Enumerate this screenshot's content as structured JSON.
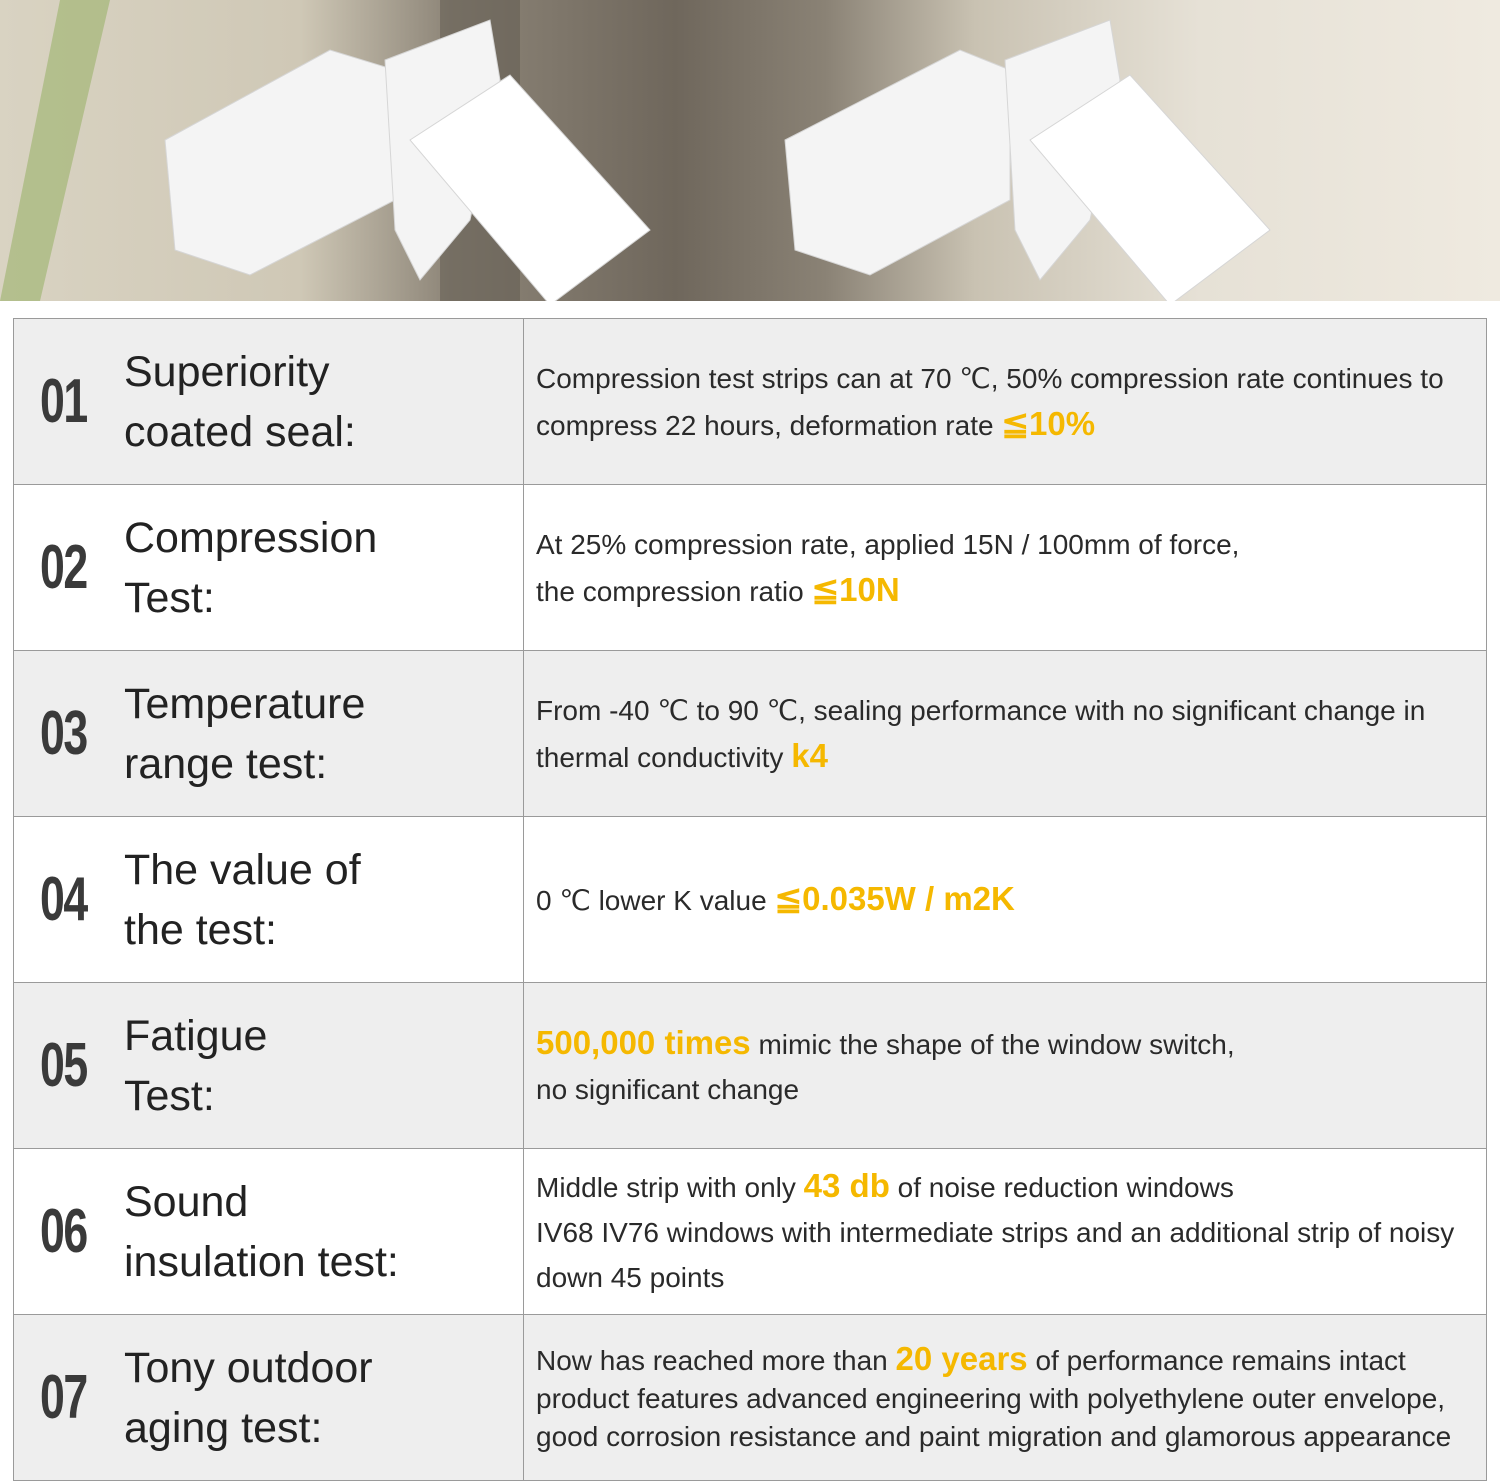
{
  "colors": {
    "highlight": "#f5b800",
    "row_alt": "#eeeeee",
    "border": "#9a9a9a"
  },
  "rows": [
    {
      "num": "01",
      "title": [
        "Superiority",
        "coated seal:"
      ],
      "desc": [
        {
          "text": "Compression test strips can at 70 ℃, 50% compression rate continues to compress 22 hours, deformation rate "
        },
        {
          "text": "≦10%",
          "hl": true
        }
      ]
    },
    {
      "num": "02",
      "title": [
        "Compression",
        "Test:"
      ],
      "desc": [
        {
          "text": "At 25% compression rate, applied 15N / 100mm of force,"
        },
        {
          "br": true
        },
        {
          "text": "the compression ratio "
        },
        {
          "text": "≦10N",
          "hl": true
        }
      ]
    },
    {
      "num": "03",
      "title": [
        "Temperature",
        "range test:"
      ],
      "desc": [
        {
          "text": "From -40 ℃ to 90 ℃, sealing performance with no significant change in thermal conductivity "
        },
        {
          "text": "k4",
          "hl": true
        }
      ]
    },
    {
      "num": "04",
      "title": [
        "The value of",
        "the test:"
      ],
      "desc": [
        {
          "text": "0 ℃ lower K value "
        },
        {
          "text": "≦0.035W / m2K",
          "hl": true
        }
      ]
    },
    {
      "num": "05",
      "title": [
        "Fatigue",
        "Test:"
      ],
      "desc": [
        {
          "text": "500,000 times",
          "hl": true
        },
        {
          "text": " mimic the shape of the window switch,"
        },
        {
          "br": true
        },
        {
          "text": "no significant change"
        }
      ]
    },
    {
      "num": "06",
      "title": [
        "Sound",
        "insulation test:"
      ],
      "desc": [
        {
          "text": "Middle strip with only "
        },
        {
          "text": "43 db",
          "hl": true
        },
        {
          "text": " of noise reduction windows"
        },
        {
          "br": true
        },
        {
          "text": "IV68 IV76 windows with intermediate strips and an additional strip of noisy down 45 points"
        }
      ]
    },
    {
      "num": "07",
      "title": [
        "Tony outdoor",
        "aging test:"
      ],
      "desc": [
        {
          "text": "Now has reached more than "
        },
        {
          "text": "20 years",
          "hl": true
        },
        {
          "text": " of performance remains intact product features advanced engineering with polyethylene outer envelope, good corrosion resistance and paint migration and glamorous appearance"
        }
      ]
    }
  ]
}
